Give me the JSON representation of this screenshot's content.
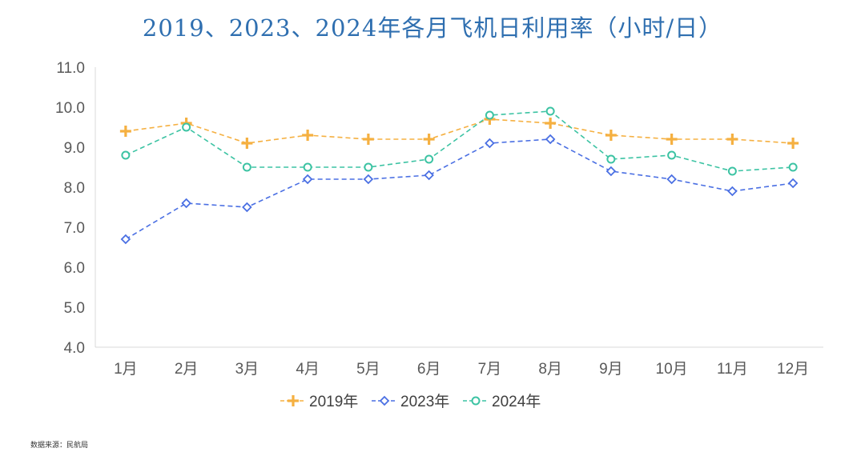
{
  "chart_data": {
    "type": "line",
    "title": "2019、2023、2024年各月飞机日利用率（小时/日）",
    "categories": [
      "1月",
      "2月",
      "3月",
      "4月",
      "5月",
      "6月",
      "7月",
      "8月",
      "9月",
      "10月",
      "11月",
      "12月"
    ],
    "ylim": [
      4.0,
      11.0
    ],
    "yticks": [
      "4.0",
      "5.0",
      "6.0",
      "7.0",
      "8.0",
      "9.0",
      "10.0",
      "11.0"
    ],
    "grid": false,
    "legend_position": "bottom",
    "series": [
      {
        "name": "2019年",
        "color": "#f5b041",
        "marker": "plus",
        "values": [
          9.4,
          9.6,
          9.1,
          9.3,
          9.2,
          9.2,
          9.7,
          9.6,
          9.3,
          9.2,
          9.2,
          9.1
        ]
      },
      {
        "name": "2023年",
        "color": "#4a6fe3",
        "marker": "diamond",
        "values": [
          6.7,
          7.6,
          7.5,
          8.2,
          8.2,
          8.3,
          9.1,
          9.2,
          8.4,
          8.2,
          7.9,
          8.1
        ]
      },
      {
        "name": "2024年",
        "color": "#3cc3a3",
        "marker": "circle",
        "values": [
          8.8,
          9.5,
          8.5,
          8.5,
          8.5,
          8.7,
          9.8,
          9.9,
          8.7,
          8.8,
          8.4,
          8.5
        ]
      }
    ]
  },
  "source_note": "数据来源：民航局"
}
